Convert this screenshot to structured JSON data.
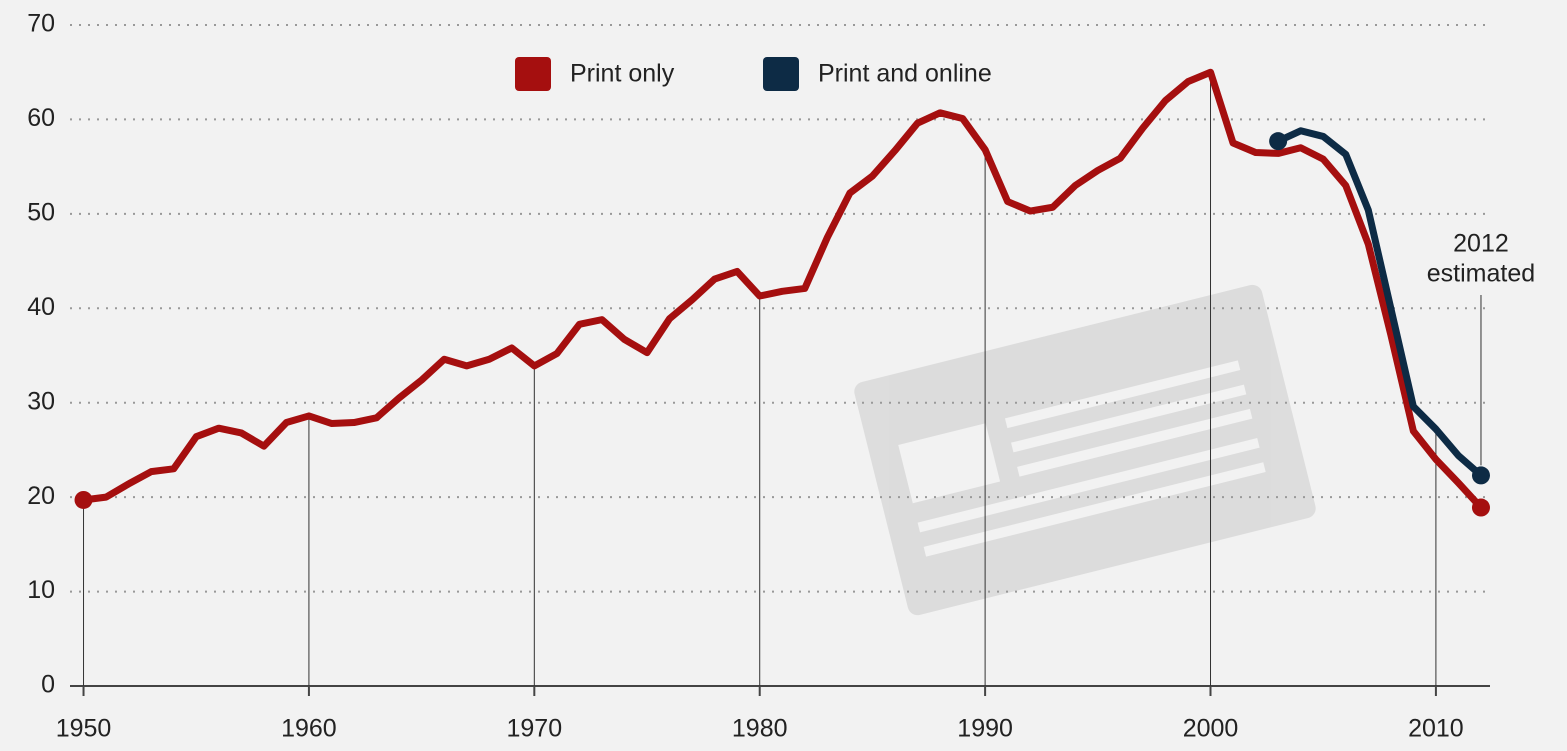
{
  "chart_data": {
    "type": "line",
    "x": [
      1950,
      1951,
      1952,
      1953,
      1954,
      1955,
      1956,
      1957,
      1958,
      1959,
      1960,
      1961,
      1962,
      1963,
      1964,
      1965,
      1966,
      1967,
      1968,
      1969,
      1970,
      1971,
      1972,
      1973,
      1974,
      1975,
      1976,
      1977,
      1978,
      1979,
      1980,
      1981,
      1982,
      1983,
      1984,
      1985,
      1986,
      1987,
      1988,
      1989,
      1990,
      1991,
      1992,
      1993,
      1994,
      1995,
      1996,
      1997,
      1998,
      1999,
      2000,
      2001,
      2002,
      2003,
      2004,
      2005,
      2006,
      2007,
      2008,
      2009,
      2010,
      2011,
      2012
    ],
    "series": [
      {
        "name": "Print only",
        "color": "#a50f0f",
        "values": [
          19.7,
          20.0,
          21.4,
          22.7,
          23.0,
          26.4,
          27.3,
          26.8,
          25.4,
          27.9,
          28.6,
          27.8,
          27.9,
          28.4,
          30.5,
          32.4,
          34.6,
          33.9,
          34.6,
          35.8,
          33.9,
          35.2,
          38.3,
          38.8,
          36.7,
          35.3,
          38.9,
          40.9,
          43.1,
          43.9,
          41.3,
          41.8,
          42.1,
          47.5,
          52.2,
          54.0,
          56.7,
          59.6,
          60.7,
          60.1,
          56.8,
          51.3,
          50.3,
          50.7,
          53.0,
          54.6,
          55.9,
          59.1,
          62.0,
          64.0,
          65.0,
          57.5,
          56.5,
          56.4,
          57.0,
          55.8,
          53.0,
          46.8,
          37.2,
          27.0,
          24.0,
          21.5,
          18.9
        ]
      },
      {
        "name": "Print and online",
        "color": "#0d2b45",
        "values": [
          null,
          null,
          null,
          null,
          null,
          null,
          null,
          null,
          null,
          null,
          null,
          null,
          null,
          null,
          null,
          null,
          null,
          null,
          null,
          null,
          null,
          null,
          null,
          null,
          null,
          null,
          null,
          null,
          null,
          null,
          null,
          null,
          null,
          null,
          null,
          null,
          null,
          null,
          null,
          null,
          null,
          null,
          null,
          null,
          null,
          null,
          null,
          null,
          null,
          null,
          null,
          null,
          null,
          57.7,
          58.8,
          58.2,
          56.3,
          50.4,
          40.0,
          29.6,
          27.2,
          24.4,
          22.3
        ]
      }
    ],
    "xlim": [
      1949.4,
      2012.4
    ],
    "xticks": [
      1950,
      1960,
      1970,
      1980,
      1990,
      2000,
      2010
    ],
    "ylim": [
      0,
      70
    ],
    "yticks": [
      0,
      10,
      20,
      30,
      40,
      50,
      60,
      70
    ],
    "grid": true,
    "annotation": [
      "2012",
      "estimated"
    ]
  }
}
